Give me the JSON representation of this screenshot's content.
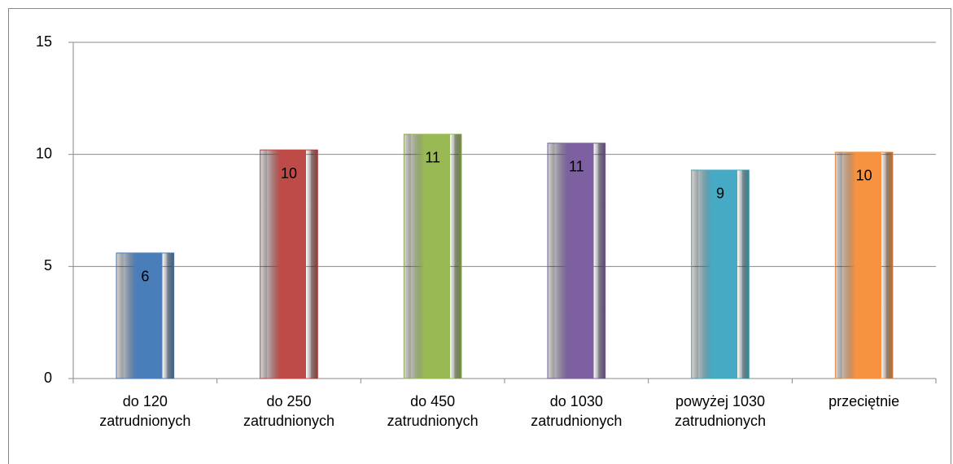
{
  "chart_data": {
    "type": "bar",
    "categories": [
      "do 120 zatrudnionych",
      "do 250 zatrudnionych",
      "do 450 zatrudnionych",
      "do 1030 zatrudnionych",
      "powyżej 1030 zatrudnionych",
      "przeciętnie"
    ],
    "values": [
      5.6,
      10.2,
      10.9,
      10.5,
      9.3,
      10.1
    ],
    "value_labels": [
      "6",
      "10",
      "11",
      "11",
      "9",
      "10"
    ],
    "colors": [
      "#4a7ebb",
      "#be4b48",
      "#98b954",
      "#7d60a0",
      "#46aac5",
      "#f69240"
    ],
    "ylim": [
      0,
      15
    ],
    "yticks": [
      0,
      5,
      10,
      15
    ],
    "grid": true
  }
}
